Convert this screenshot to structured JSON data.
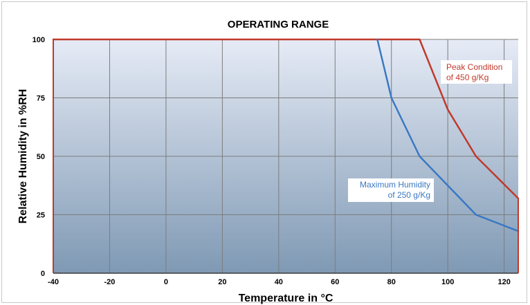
{
  "chart_data": {
    "type": "line",
    "title": "OPERATING RANGE",
    "xlabel": "Temperature in °C",
    "ylabel": "Relative Humidity in %RH",
    "xlim": [
      -40,
      125
    ],
    "ylim": [
      0,
      100
    ],
    "x_ticks": [
      "-40",
      "-20",
      "0",
      "20",
      "40",
      "60",
      "80",
      "100",
      "120"
    ],
    "y_ticks": [
      "0",
      "25",
      "50",
      "75",
      "100"
    ],
    "grid": true,
    "series": [
      {
        "name": "Peak Condition of 450 g/Kg",
        "label_lines": [
          "Peak Condition",
          "of 450 g/Kg"
        ],
        "color": "#c0392b",
        "x": [
          -40,
          90,
          100,
          110,
          125
        ],
        "y": [
          100,
          100,
          70,
          50,
          32
        ]
      },
      {
        "name": "Maximum Humidity of 250 g/Kg",
        "label_lines": [
          "Maximum Humidity",
          "of 250 g/Kg"
        ],
        "color": "#3a78c2",
        "x": [
          75,
          80,
          90,
          100,
          110,
          125
        ],
        "y": [
          100,
          75,
          50,
          37.5,
          25,
          18
        ]
      }
    ],
    "legend": "inline annotations",
    "background_gradient": [
      "#e6ebf6",
      "#7f99b4"
    ]
  }
}
